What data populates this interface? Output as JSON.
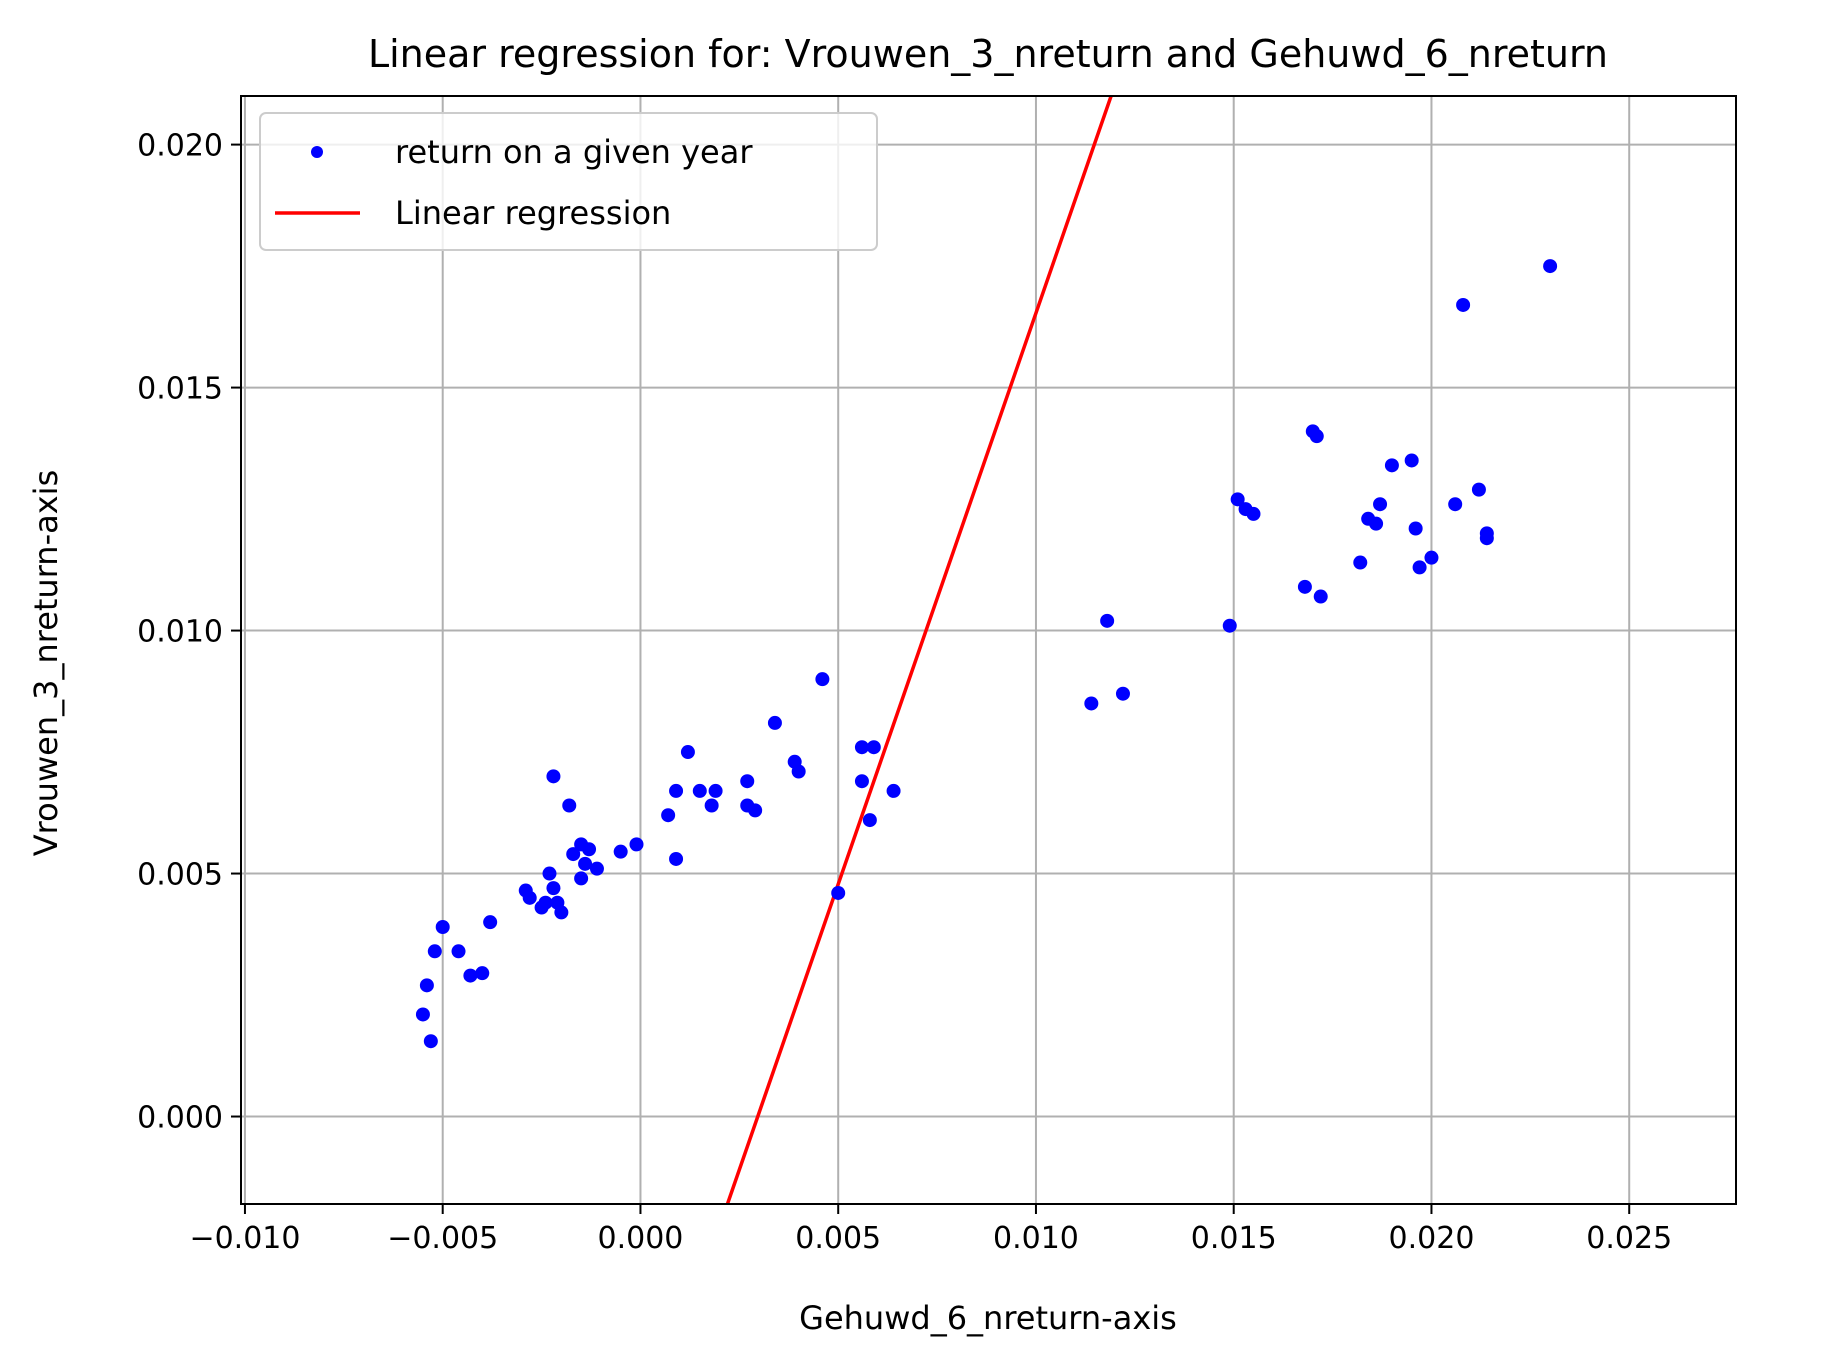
{
  "chart_data": {
    "type": "scatter",
    "title": "Linear regression for: Vrouwen_3_nreturn and Gehuwd_6_nreturn",
    "xlabel": "Gehuwd_6_nreturn-axis",
    "ylabel": "Vrouwen_3_nreturn-axis",
    "xlim": [
      -0.0101,
      0.0277
    ],
    "ylim": [
      -0.0018,
      0.021
    ],
    "xticks": [
      "−0.010",
      "−0.005",
      "0.000",
      "0.005",
      "0.010",
      "0.015",
      "0.020",
      "0.025"
    ],
    "xtick_values": [
      -0.01,
      -0.005,
      0.0,
      0.005,
      0.01,
      0.015,
      0.02,
      0.025
    ],
    "yticks": [
      "0.000",
      "0.005",
      "0.010",
      "0.015",
      "0.020"
    ],
    "ytick_values": [
      0.0,
      0.005,
      0.01,
      0.015,
      0.02
    ],
    "grid": true,
    "legend_position": "top-left",
    "colors": {
      "scatter": "#0000ff",
      "regression": "#ff0000",
      "grid": "#b0b0b0"
    },
    "series": [
      {
        "name": "return on a given year",
        "kind": "scatter",
        "points": [
          [
            -0.0055,
            0.0021
          ],
          [
            -0.0054,
            0.0027
          ],
          [
            -0.0053,
            0.00155
          ],
          [
            -0.0052,
            0.0034
          ],
          [
            -0.005,
            0.0039
          ],
          [
            -0.0046,
            0.0034
          ],
          [
            -0.0043,
            0.0029
          ],
          [
            -0.004,
            0.00295
          ],
          [
            -0.0038,
            0.004
          ],
          [
            -0.0029,
            0.00465
          ],
          [
            -0.0028,
            0.0045
          ],
          [
            -0.0025,
            0.0043
          ],
          [
            -0.0024,
            0.0044
          ],
          [
            -0.0023,
            0.005
          ],
          [
            -0.0022,
            0.0047
          ],
          [
            -0.0022,
            0.007
          ],
          [
            -0.0021,
            0.0044
          ],
          [
            -0.002,
            0.0042
          ],
          [
            -0.0018,
            0.0064
          ],
          [
            -0.0017,
            0.0054
          ],
          [
            -0.0015,
            0.0049
          ],
          [
            -0.0015,
            0.0056
          ],
          [
            -0.0014,
            0.0052
          ],
          [
            -0.0013,
            0.0055
          ],
          [
            -0.0011,
            0.0051
          ],
          [
            -0.0005,
            0.00545
          ],
          [
            -0.0001,
            0.0056
          ],
          [
            0.0007,
            0.0062
          ],
          [
            0.0009,
            0.0053
          ],
          [
            0.0009,
            0.0067
          ],
          [
            0.0012,
            0.0075
          ],
          [
            0.0015,
            0.0067
          ],
          [
            0.0018,
            0.0064
          ],
          [
            0.0019,
            0.0067
          ],
          [
            0.0027,
            0.0069
          ],
          [
            0.0027,
            0.0064
          ],
          [
            0.0029,
            0.0063
          ],
          [
            0.0034,
            0.0081
          ],
          [
            0.0039,
            0.0073
          ],
          [
            0.004,
            0.0071
          ],
          [
            0.0046,
            0.009
          ],
          [
            0.005,
            0.0046
          ],
          [
            0.0056,
            0.0076
          ],
          [
            0.0056,
            0.0069
          ],
          [
            0.0058,
            0.0061
          ],
          [
            0.0059,
            0.0076
          ],
          [
            0.0064,
            0.0067
          ],
          [
            0.0114,
            0.0085
          ],
          [
            0.0118,
            0.0102
          ],
          [
            0.0122,
            0.0087
          ],
          [
            0.0149,
            0.0101
          ],
          [
            0.0151,
            0.0127
          ],
          [
            0.0153,
            0.0125
          ],
          [
            0.0155,
            0.0124
          ],
          [
            0.0168,
            0.0109
          ],
          [
            0.017,
            0.0141
          ],
          [
            0.0171,
            0.014
          ],
          [
            0.0172,
            0.0107
          ],
          [
            0.0182,
            0.0114
          ],
          [
            0.0184,
            0.0123
          ],
          [
            0.0186,
            0.0122
          ],
          [
            0.0187,
            0.0126
          ],
          [
            0.019,
            0.0134
          ],
          [
            0.0195,
            0.0135
          ],
          [
            0.0196,
            0.0121
          ],
          [
            0.0197,
            0.0113
          ],
          [
            0.02,
            0.0115
          ],
          [
            0.0206,
            0.0126
          ],
          [
            0.0208,
            0.0167
          ],
          [
            0.0212,
            0.0129
          ],
          [
            0.0214,
            0.012
          ],
          [
            0.0214,
            0.0119
          ],
          [
            0.023,
            0.0175
          ]
        ]
      },
      {
        "name": "Linear regression",
        "kind": "line",
        "points": [
          [
            0.0022,
            -0.0018
          ],
          [
            0.0119,
            0.021
          ]
        ]
      }
    ]
  }
}
